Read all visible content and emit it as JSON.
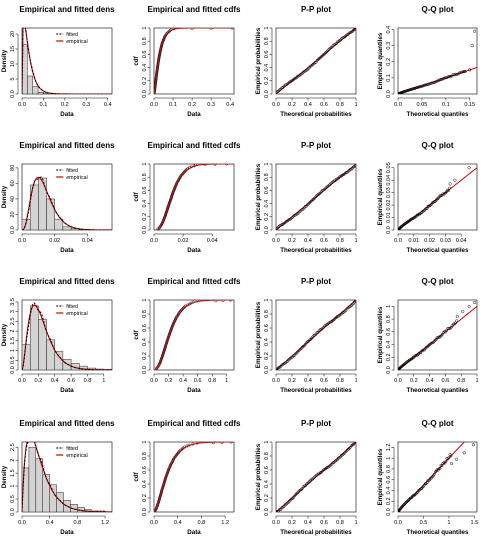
{
  "titles": {
    "density": "Empirical and fitted dens",
    "cdf": "Empirical and fitted cdfs",
    "pp": "P-P plot",
    "qq": "Q-Q plot"
  },
  "axis_labels": {
    "data": "Data",
    "density": "Density",
    "cdf": "cdf",
    "theoretical_prob": "Theoretical probabilities",
    "empirical_prob": "Empirical probabilities",
    "theoretical_quant": "Theoretical quantiles",
    "empirical_quant": "Empirical quantiles"
  },
  "legend": {
    "fitted": "fitted",
    "empirical": "empirical"
  },
  "colors": {
    "fitted_line": "#cc0000",
    "empirical_dens": "#000000",
    "histogram": "#d3d3d3",
    "ecdf_point": "#000000"
  },
  "chart_data": [
    {
      "type": "histogram",
      "panel": "density",
      "row": 1,
      "title": "Empirical and fitted dens",
      "xlabel": "Data",
      "ylabel": "Density",
      "xlim": [
        0,
        0.42
      ],
      "ylim": [
        0,
        22
      ],
      "xticks": [
        0.0,
        0.1,
        0.2,
        0.3,
        0.4
      ],
      "yticks": [
        0,
        5,
        10,
        15,
        20
      ],
      "bins": [
        0,
        0.025,
        0.05,
        0.075,
        0.1,
        0.15,
        0.2,
        0.3,
        0.4
      ],
      "heights": [
        16.5,
        6,
        2.5,
        0.6,
        0.3,
        0.05,
        0.02,
        0.03
      ],
      "fitted_curve": {
        "dist": "gamma",
        "shape": 1.4,
        "scale": 0.022
      }
    },
    {
      "type": "line",
      "panel": "cdf",
      "row": 1,
      "title": "Empirical and fitted cdfs",
      "xlabel": "Data",
      "ylabel": "cdf",
      "xlim": [
        0,
        0.42
      ],
      "ylim": [
        0,
        1
      ],
      "xticks": [
        0.0,
        0.1,
        0.2,
        0.3,
        0.4
      ],
      "yticks": [
        0.0,
        0.2,
        0.4,
        0.6,
        0.8,
        1.0
      ],
      "fitted_curve": {
        "dist": "gamma",
        "shape": 1.4,
        "scale": 0.022
      },
      "outlier_points": [
        [
          0.2,
          0.995
        ],
        [
          0.3,
          0.998
        ],
        [
          0.41,
          1.0
        ]
      ]
    },
    {
      "type": "scatter",
      "panel": "pp",
      "row": 1,
      "title": "P-P plot",
      "xlabel": "Theoretical probabilities",
      "ylabel": "Empirical probabilities",
      "xlim": [
        0,
        1
      ],
      "ylim": [
        0,
        1
      ],
      "xticks": [
        0.0,
        0.2,
        0.4,
        0.6,
        0.8,
        1.0
      ],
      "yticks": [
        0.0,
        0.2,
        0.4,
        0.6,
        0.8,
        1.0
      ]
    },
    {
      "type": "scatter",
      "panel": "qq",
      "row": 1,
      "title": "Q-Q plot",
      "xlabel": "Theoretical quantiles",
      "ylabel": "Empirical quantiles",
      "xlim": [
        0,
        0.165
      ],
      "ylim": [
        0,
        0.41
      ],
      "xticks": [
        0.0,
        0.05,
        0.1,
        0.15
      ],
      "yticks": [
        0.0,
        0.1,
        0.2,
        0.3,
        0.4
      ],
      "outlier_points": [
        [
          0.14,
          0.14
        ],
        [
          0.15,
          0.15
        ],
        [
          0.155,
          0.3
        ],
        [
          0.16,
          0.39
        ]
      ]
    },
    {
      "type": "histogram",
      "panel": "density",
      "row": 2,
      "title": "Empirical and fitted dens",
      "xlabel": "Data",
      "ylabel": "Density",
      "xlim": [
        0,
        0.055
      ],
      "ylim": [
        0,
        85
      ],
      "xticks": [
        0.0,
        0.02,
        0.04
      ],
      "yticks": [
        0,
        20,
        40,
        60,
        80
      ],
      "bins": [
        0,
        0.005,
        0.01,
        0.015,
        0.02,
        0.025,
        0.03,
        0.035,
        0.04,
        0.045,
        0.05
      ],
      "heights": [
        14,
        58,
        67,
        40,
        14,
        4,
        1.5,
        0.6,
        0.3,
        0.2
      ],
      "fitted_curve": {
        "dist": "gamma",
        "shape": 4.0,
        "scale": 0.0033
      }
    },
    {
      "type": "line",
      "panel": "cdf",
      "row": 2,
      "title": "Empirical and fitted cdfs",
      "xlabel": "Data",
      "ylabel": "cdf",
      "xlim": [
        0,
        0.055
      ],
      "ylim": [
        0,
        1
      ],
      "xticks": [
        0.0,
        0.02,
        0.04
      ],
      "yticks": [
        0.0,
        0.2,
        0.4,
        0.6,
        0.8,
        1.0
      ],
      "fitted_curve": {
        "dist": "gamma",
        "shape": 4.0,
        "scale": 0.0033
      },
      "outlier_points": [
        [
          0.035,
          0.995
        ],
        [
          0.042,
          0.998
        ],
        [
          0.05,
          1.0
        ]
      ]
    },
    {
      "type": "scatter",
      "panel": "pp",
      "row": 2,
      "title": "P-P plot",
      "xlabel": "Theoretical probabilities",
      "ylabel": "Empirical probabilities",
      "xlim": [
        0,
        1
      ],
      "ylim": [
        0,
        1
      ],
      "xticks": [
        0.0,
        0.2,
        0.4,
        0.6,
        0.8,
        1.0
      ],
      "yticks": [
        0.0,
        0.2,
        0.4,
        0.6,
        0.8,
        1.0
      ]
    },
    {
      "type": "scatter",
      "panel": "qq",
      "row": 2,
      "title": "Q-Q plot",
      "xlabel": "Theoretical quantiles",
      "ylabel": "Empirical quantiles",
      "xlim": [
        0,
        0.05
      ],
      "ylim": [
        0,
        0.053
      ],
      "xticks": [
        0.0,
        0.01,
        0.02,
        0.03,
        0.04
      ],
      "yticks": [
        0.0,
        0.01,
        0.02,
        0.03,
        0.04,
        0.05
      ],
      "outlier_points": [
        [
          0.033,
          0.037
        ],
        [
          0.036,
          0.04
        ],
        [
          0.045,
          0.05
        ]
      ]
    },
    {
      "type": "histogram",
      "panel": "density",
      "row": 3,
      "title": "Empirical and fitted dens",
      "xlabel": "Data",
      "ylabel": "Density",
      "xlim": [
        0,
        1.1
      ],
      "ylim": [
        0,
        3.6
      ],
      "xticks": [
        0.0,
        0.2,
        0.4,
        0.6,
        0.8,
        1.0
      ],
      "yticks": [
        0.0,
        0.5,
        1.0,
        1.5,
        2.0,
        2.5,
        3.0,
        3.5
      ],
      "bins": [
        0,
        0.1,
        0.2,
        0.3,
        0.4,
        0.5,
        0.6,
        0.7,
        0.8,
        0.9,
        1.0,
        1.1
      ],
      "heights": [
        1.3,
        3.3,
        2.6,
        1.55,
        0.95,
        0.55,
        0.35,
        0.2,
        0.1,
        0.05,
        0.03
      ],
      "fitted_curve": {
        "dist": "gamma",
        "shape": 2.8,
        "scale": 0.085
      }
    },
    {
      "type": "line",
      "panel": "cdf",
      "row": 3,
      "title": "Empirical and fitted cdfs",
      "xlabel": "Data",
      "ylabel": "cdf",
      "xlim": [
        0,
        1.1
      ],
      "ylim": [
        0,
        1
      ],
      "xticks": [
        0.0,
        0.2,
        0.4,
        0.6,
        0.8,
        1.0
      ],
      "yticks": [
        0.0,
        0.2,
        0.4,
        0.6,
        0.8,
        1.0
      ],
      "fitted_curve": {
        "dist": "gamma",
        "shape": 2.8,
        "scale": 0.085
      },
      "outlier_points": [
        [
          0.85,
          0.99
        ],
        [
          0.95,
          0.995
        ],
        [
          1.05,
          1.0
        ]
      ]
    },
    {
      "type": "scatter",
      "panel": "pp",
      "row": 3,
      "title": "P-P plot",
      "xlabel": "Theoretical probabilities",
      "ylabel": "Empirical probabilities",
      "xlim": [
        0,
        1
      ],
      "ylim": [
        0,
        1
      ],
      "xticks": [
        0.0,
        0.2,
        0.4,
        0.6,
        0.8,
        1.0
      ],
      "yticks": [
        0.0,
        0.2,
        0.4,
        0.6,
        0.8,
        1.0
      ]
    },
    {
      "type": "scatter",
      "panel": "qq",
      "row": 3,
      "title": "Q-Q plot",
      "xlabel": "Theoretical quantiles",
      "ylabel": "Empirical quantiles",
      "xlim": [
        0,
        1.0
      ],
      "ylim": [
        0,
        1.1
      ],
      "xticks": [
        0.0,
        0.2,
        0.4,
        0.6,
        0.8,
        1.0
      ],
      "yticks": [
        0.0,
        0.2,
        0.4,
        0.6,
        0.8,
        1.0
      ],
      "outlier_points": [
        [
          0.75,
          0.84
        ],
        [
          0.82,
          0.92
        ],
        [
          0.9,
          1.0
        ],
        [
          0.97,
          1.06
        ]
      ]
    },
    {
      "type": "histogram",
      "panel": "density",
      "row": 4,
      "title": "Empirical and fitted dens",
      "xlabel": "Data",
      "ylabel": "Density",
      "xlim": [
        0,
        1.3
      ],
      "ylim": [
        0,
        2.7
      ],
      "xticks": [
        0.0,
        0.4,
        0.8,
        1.2
      ],
      "yticks": [
        0.0,
        0.5,
        1.0,
        1.5,
        2.0,
        2.5
      ],
      "bins": [
        0,
        0.1,
        0.2,
        0.3,
        0.4,
        0.5,
        0.6,
        0.7,
        0.8,
        0.9,
        1.0,
        1.2
      ],
      "heights": [
        1.7,
        2.5,
        2.05,
        1.45,
        1.05,
        0.75,
        0.45,
        0.3,
        0.18,
        0.1,
        0.04
      ],
      "fitted_curve": {
        "dist": "gamma",
        "shape": 1.9,
        "scale": 0.13
      }
    },
    {
      "type": "line",
      "panel": "cdf",
      "row": 4,
      "title": "Empirical and fitted cdfs",
      "xlabel": "Data",
      "ylabel": "cdf",
      "xlim": [
        0,
        1.35
      ],
      "ylim": [
        0,
        1
      ],
      "xticks": [
        0.0,
        0.4,
        0.8,
        1.2
      ],
      "yticks": [
        0.0,
        0.2,
        0.4,
        0.6,
        0.8,
        1.0
      ],
      "fitted_curve": {
        "dist": "gamma",
        "shape": 1.9,
        "scale": 0.13
      },
      "outlier_points": [
        [
          1.0,
          0.99
        ],
        [
          1.15,
          0.995
        ],
        [
          1.3,
          1.0
        ]
      ]
    },
    {
      "type": "scatter",
      "panel": "pp",
      "row": 4,
      "title": "P-P plot",
      "xlabel": "Theoretical probabilities",
      "ylabel": "Empirical probabilities",
      "xlim": [
        0,
        1
      ],
      "ylim": [
        0,
        1
      ],
      "xticks": [
        0.0,
        0.2,
        0.4,
        0.6,
        0.8,
        1.0
      ],
      "yticks": [
        0.0,
        0.2,
        0.4,
        0.6,
        0.8,
        1.0
      ]
    },
    {
      "type": "scatter",
      "panel": "qq",
      "row": 4,
      "title": "Q-Q plot",
      "xlabel": "Theoretical quantiles",
      "ylabel": "Empirical quantiles",
      "xlim": [
        0,
        1.55
      ],
      "ylim": [
        0,
        1.3
      ],
      "xticks": [
        0.0,
        0.5,
        1.0,
        1.5
      ],
      "yticks": [
        0.0,
        0.2,
        0.4,
        0.6,
        0.8,
        1.0,
        1.2
      ],
      "outlier_points": [
        [
          1.05,
          0.9
        ],
        [
          1.15,
          0.98
        ],
        [
          1.3,
          1.1
        ],
        [
          1.48,
          1.25
        ]
      ]
    }
  ]
}
